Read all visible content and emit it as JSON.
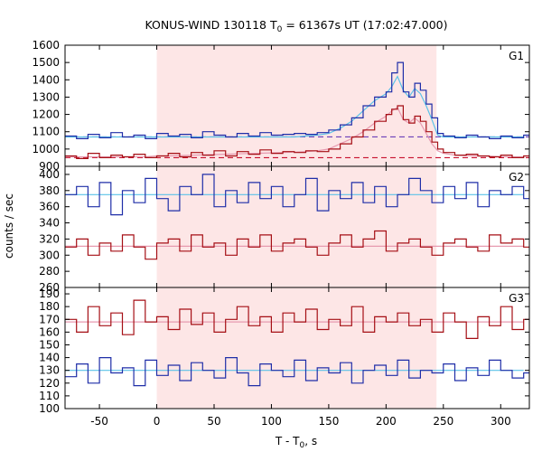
{
  "chart_data": {
    "type": "line",
    "title_prefix": "KONUS-WIND 130118 T",
    "title_sub": "0",
    "title_suffix": " = 61367s UT (17:02:47.000)",
    "ylabel": "counts / sec",
    "xlabel_prefix": "T - T",
    "xlabel_sub": "0",
    "xlabel_suffix": ", s",
    "xlim": [
      -80,
      325
    ],
    "xticks": [
      -50,
      0,
      50,
      100,
      150,
      200,
      250,
      300
    ],
    "highlight_interval": [
      0,
      244
    ],
    "colors": {
      "highlight": "#fde6e6",
      "dark_blue": "#1f2ea8",
      "dark_red": "#a50f15",
      "light_blue": "#5bc2e8",
      "pink": "#e79ab0",
      "purple_bg": "#6a3fb8",
      "red_bg": "#c8102e"
    },
    "panels": [
      {
        "label": "G1",
        "ylim": [
          900,
          1600
        ],
        "yticks": [
          900,
          1000,
          1100,
          1200,
          1300,
          1400,
          1500,
          1600
        ],
        "background_levels": [
          {
            "series": "blue",
            "value": 1070
          },
          {
            "series": "red",
            "value": 950
          }
        ],
        "series": [
          {
            "key": "blue",
            "x": [
              -80,
              -70,
              -60,
              -50,
              -40,
              -30,
              -20,
              -10,
              0,
              10,
              20,
              30,
              40,
              50,
              60,
              70,
              80,
              90,
              100,
              110,
              120,
              130,
              140,
              150,
              160,
              170,
              180,
              190,
              200,
              205,
              210,
              215,
              220,
              225,
              230,
              235,
              240,
              245,
              250,
              260,
              270,
              280,
              290,
              300,
              310,
              320
            ],
            "y": [
              1075,
              1060,
              1085,
              1065,
              1095,
              1070,
              1080,
              1060,
              1090,
              1075,
              1085,
              1065,
              1100,
              1080,
              1070,
              1090,
              1075,
              1095,
              1080,
              1085,
              1090,
              1085,
              1095,
              1110,
              1140,
              1180,
              1250,
              1300,
              1330,
              1440,
              1500,
              1330,
              1300,
              1380,
              1340,
              1260,
              1180,
              1090,
              1075,
              1065,
              1080,
              1070,
              1060,
              1075,
              1065,
              1080
            ],
            "model": [
              1070,
              1070,
              1070,
              1070,
              1070,
              1070,
              1070,
              1070,
              1070,
              1070,
              1070,
              1070,
              1070,
              1070,
              1070,
              1070,
              1070,
              1070,
              1070,
              1070,
              1070,
              1075,
              1080,
              1090,
              1120,
              1160,
              1220,
              1280,
              1320,
              1360,
              1420,
              1340,
              1300,
              1350,
              1320,
              1250,
              1170,
              1080,
              1070,
              1070,
              1070,
              1070,
              1070,
              1070,
              1070,
              1070
            ]
          },
          {
            "key": "red",
            "x": [
              -80,
              -70,
              -60,
              -50,
              -40,
              -30,
              -20,
              -10,
              0,
              10,
              20,
              30,
              40,
              50,
              60,
              70,
              80,
              90,
              100,
              110,
              120,
              130,
              140,
              150,
              160,
              170,
              180,
              190,
              200,
              205,
              210,
              215,
              220,
              225,
              230,
              235,
              240,
              245,
              250,
              260,
              270,
              280,
              290,
              300,
              310,
              320
            ],
            "y": [
              960,
              945,
              975,
              950,
              965,
              955,
              970,
              950,
              960,
              975,
              955,
              980,
              965,
              990,
              960,
              985,
              970,
              995,
              975,
              985,
              980,
              990,
              985,
              1000,
              1030,
              1070,
              1110,
              1160,
              1200,
              1230,
              1250,
              1170,
              1150,
              1190,
              1160,
              1100,
              1040,
              1000,
              980,
              965,
              970,
              960,
              955,
              965,
              950,
              960
            ],
            "model": [
              955,
              955,
              955,
              955,
              955,
              955,
              955,
              955,
              960,
              960,
              962,
              964,
              966,
              968,
              970,
              972,
              974,
              976,
              978,
              980,
              982,
              985,
              990,
              1000,
              1030,
              1060,
              1100,
              1150,
              1190,
              1220,
              1240,
              1170,
              1150,
              1180,
              1150,
              1090,
              1030,
              990,
              975,
              965,
              962,
              960,
              958,
              956,
              955,
              955
            ]
          }
        ]
      },
      {
        "label": "G2",
        "ylim": [
          260,
          410
        ],
        "yticks": [
          260,
          280,
          300,
          320,
          340,
          360,
          380,
          400
        ],
        "background_levels": [],
        "series": [
          {
            "key": "blue",
            "x": [
              -80,
              -70,
              -60,
              -50,
              -40,
              -30,
              -20,
              -10,
              0,
              10,
              20,
              30,
              40,
              50,
              60,
              70,
              80,
              90,
              100,
              110,
              120,
              130,
              140,
              150,
              160,
              170,
              180,
              190,
              200,
              210,
              220,
              230,
              240,
              250,
              260,
              270,
              280,
              290,
              300,
              310,
              320
            ],
            "y": [
              375,
              385,
              360,
              390,
              350,
              380,
              365,
              395,
              370,
              355,
              385,
              375,
              400,
              360,
              380,
              365,
              390,
              370,
              385,
              360,
              375,
              395,
              355,
              380,
              370,
              390,
              365,
              385,
              360,
              375,
              395,
              380,
              365,
              385,
              370,
              390,
              360,
              380,
              375,
              385,
              370
            ],
            "model": [
              375,
              375,
              375,
              375,
              375,
              375,
              375,
              375,
              375,
              375,
              375,
              375,
              375,
              375,
              375,
              375,
              375,
              375,
              375,
              375,
              375,
              375,
              375,
              375,
              375,
              375,
              375,
              375,
              375,
              375,
              375,
              375,
              375,
              375,
              375,
              375,
              375,
              375,
              375,
              375,
              375
            ]
          },
          {
            "key": "red",
            "x": [
              -80,
              -70,
              -60,
              -50,
              -40,
              -30,
              -20,
              -10,
              0,
              10,
              20,
              30,
              40,
              50,
              60,
              70,
              80,
              90,
              100,
              110,
              120,
              130,
              140,
              150,
              160,
              170,
              180,
              190,
              200,
              210,
              220,
              230,
              240,
              250,
              260,
              270,
              280,
              290,
              300,
              310,
              320
            ],
            "y": [
              310,
              320,
              300,
              315,
              305,
              325,
              310,
              295,
              315,
              320,
              305,
              325,
              310,
              315,
              300,
              320,
              310,
              325,
              305,
              315,
              320,
              310,
              300,
              315,
              325,
              310,
              320,
              330,
              305,
              315,
              320,
              310,
              300,
              315,
              320,
              310,
              305,
              325,
              315,
              320,
              310
            ],
            "model": [
              311,
              311,
              311,
              311,
              311,
              311,
              311,
              311,
              311,
              311,
              311,
              311,
              311,
              311,
              311,
              311,
              311,
              311,
              311,
              311,
              311,
              311,
              311,
              311,
              311,
              311,
              311,
              311,
              311,
              311,
              311,
              311,
              311,
              311,
              311,
              311,
              311,
              311,
              311,
              311,
              311
            ]
          }
        ]
      },
      {
        "label": "G3",
        "ylim": [
          100,
          195
        ],
        "yticks": [
          100,
          110,
          120,
          130,
          140,
          150,
          160,
          170,
          180,
          190
        ],
        "background_levels": [],
        "series": [
          {
            "key": "red",
            "x": [
              -80,
              -70,
              -60,
              -50,
              -40,
              -30,
              -20,
              -10,
              0,
              10,
              20,
              30,
              40,
              50,
              60,
              70,
              80,
              90,
              100,
              110,
              120,
              130,
              140,
              150,
              160,
              170,
              180,
              190,
              200,
              210,
              220,
              230,
              240,
              250,
              260,
              270,
              280,
              290,
              300,
              310,
              320
            ],
            "y": [
              170,
              160,
              180,
              165,
              175,
              158,
              185,
              168,
              172,
              162,
              178,
              166,
              175,
              160,
              170,
              180,
              165,
              172,
              160,
              175,
              168,
              178,
              162,
              170,
              165,
              180,
              160,
              172,
              168,
              175,
              165,
              170,
              160,
              175,
              168,
              155,
              172,
              165,
              180,
              162,
              170
            ],
            "model": [
              168,
              168,
              168,
              168,
              168,
              168,
              168,
              168,
              168,
              168,
              168,
              168,
              168,
              168,
              168,
              168,
              168,
              168,
              168,
              168,
              168,
              168,
              168,
              168,
              168,
              168,
              168,
              168,
              168,
              168,
              168,
              168,
              168,
              168,
              168,
              168,
              168,
              168,
              168,
              168,
              168
            ]
          },
          {
            "key": "blue",
            "x": [
              -80,
              -70,
              -60,
              -50,
              -40,
              -30,
              -20,
              -10,
              0,
              10,
              20,
              30,
              40,
              50,
              60,
              70,
              80,
              90,
              100,
              110,
              120,
              130,
              140,
              150,
              160,
              170,
              180,
              190,
              200,
              210,
              220,
              230,
              240,
              250,
              260,
              270,
              280,
              290,
              300,
              310,
              320
            ],
            "y": [
              125,
              135,
              120,
              140,
              128,
              132,
              118,
              138,
              126,
              134,
              122,
              136,
              130,
              124,
              140,
              128,
              118,
              135,
              130,
              125,
              138,
              122,
              132,
              128,
              136,
              120,
              130,
              134,
              126,
              138,
              124,
              130,
              128,
              135,
              122,
              132,
              126,
              138,
              130,
              124,
              128
            ],
            "model": [
              130,
              130,
              130,
              130,
              130,
              130,
              130,
              130,
              130,
              130,
              130,
              130,
              130,
              130,
              130,
              130,
              130,
              130,
              130,
              130,
              130,
              130,
              130,
              130,
              130,
              130,
              130,
              130,
              130,
              130,
              130,
              130,
              130,
              130,
              130,
              130,
              130,
              130,
              130,
              130,
              130
            ]
          }
        ]
      }
    ]
  }
}
